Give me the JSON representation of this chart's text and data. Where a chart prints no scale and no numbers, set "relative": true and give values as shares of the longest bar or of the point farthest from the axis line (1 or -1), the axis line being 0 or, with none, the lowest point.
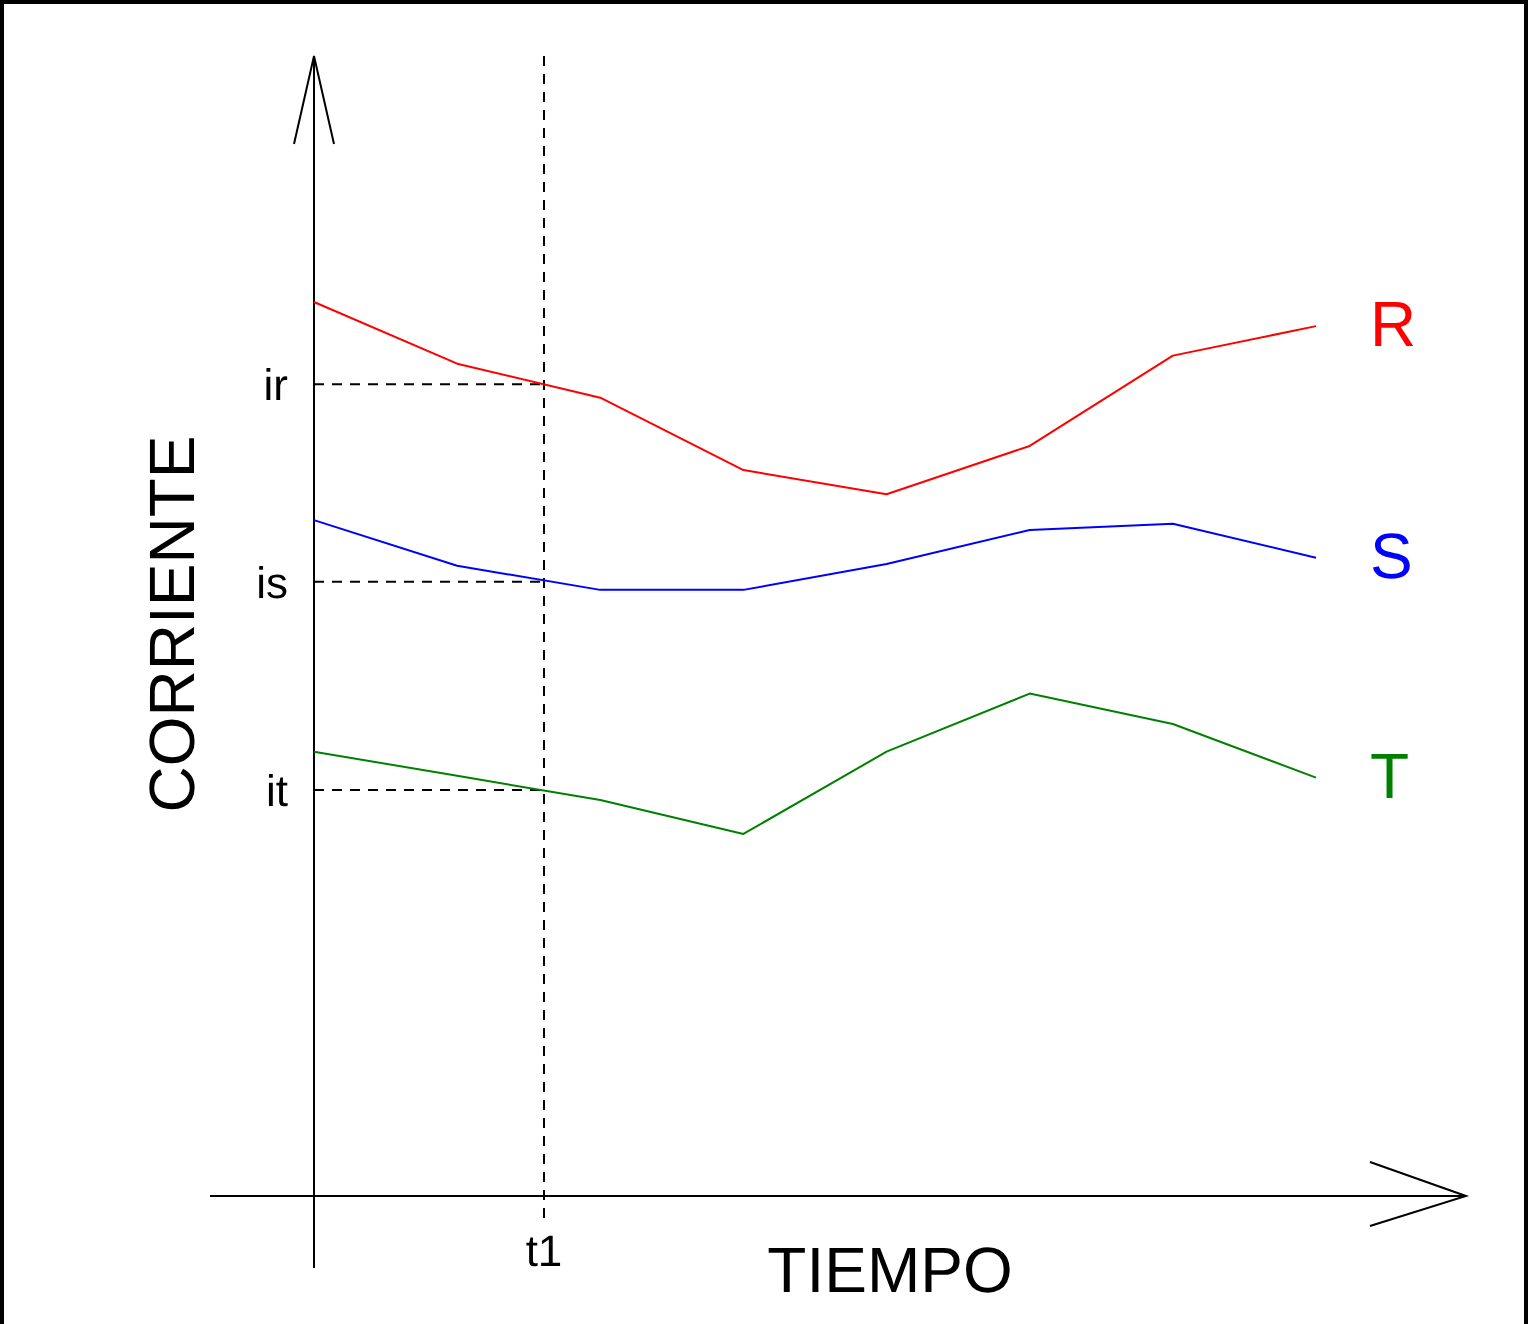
{
  "chart_data": {
    "type": "line",
    "relative": true,
    "xlabel": "TIEMPO",
    "ylabel": "CORRIENTE",
    "categories": [
      null,
      null,
      null,
      null,
      null,
      null,
      null,
      null
    ],
    "series": [
      {
        "name": "R",
        "color": "#ff0000",
        "values": [
          1,
          0.931,
          0.893,
          0.812,
          0.785,
          0.839,
          0.94,
          0.973
        ]
      },
      {
        "name": "S",
        "color": "#0000ff",
        "values": [
          0.756,
          0.705,
          0.678,
          0.678,
          0.707,
          0.745,
          0.752,
          0.714
        ]
      },
      {
        "name": "T",
        "color": "#008000",
        "values": [
          0.497,
          0.47,
          0.443,
          0.405,
          0.497,
          0.562,
          0.528,
          0.468
        ]
      }
    ],
    "ref_lines": [
      {
        "axis": "y",
        "value": 0.908,
        "label": "ir",
        "line_style": "dashed"
      },
      {
        "axis": "y",
        "value": 0.687,
        "label": "is",
        "line_style": "dashed"
      },
      {
        "axis": "y",
        "value": 0.454,
        "label": "it",
        "line_style": "dashed"
      }
    ],
    "annotations": [
      "t1"
    ],
    "legend": false,
    "grid": false,
    "marker": "none",
    "line_style": "solid"
  }
}
